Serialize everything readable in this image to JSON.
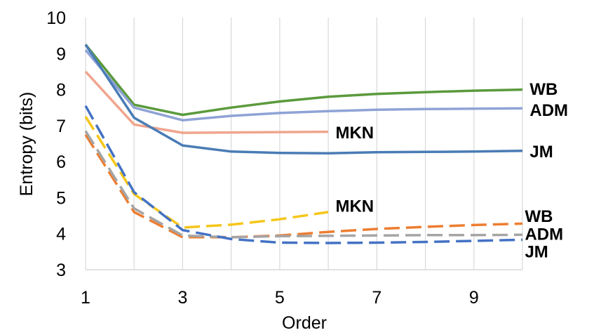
{
  "chart_data": {
    "type": "line",
    "xlabel": "Order",
    "ylabel": "Entropy (bits)",
    "xlim": [
      1,
      10
    ],
    "ylim": [
      3,
      10
    ],
    "x_ticks": [
      1,
      3,
      5,
      7,
      9
    ],
    "y_ticks": [
      3,
      4,
      5,
      6,
      7,
      8,
      9,
      10
    ],
    "grid": "vertical",
    "series": [
      {
        "name": "WB",
        "style": "solid",
        "color": "#5b9a3c",
        "x": [
          1,
          2,
          3,
          4,
          5,
          6,
          7,
          8,
          9,
          10
        ],
        "y": [
          9.25,
          7.58,
          7.3,
          7.5,
          7.67,
          7.8,
          7.88,
          7.93,
          7.97,
          8.0
        ]
      },
      {
        "name": "ADM",
        "style": "solid",
        "color": "#8fa3d6",
        "x": [
          1,
          2,
          3,
          4,
          5,
          6,
          7,
          8,
          9,
          10
        ],
        "y": [
          9.1,
          7.5,
          7.15,
          7.27,
          7.35,
          7.4,
          7.44,
          7.46,
          7.47,
          7.48
        ]
      },
      {
        "name": "MKN",
        "style": "solid",
        "color": "#f0a58e",
        "x": [
          1,
          2,
          3,
          4,
          5,
          6
        ],
        "y": [
          8.5,
          7.03,
          6.8,
          6.81,
          6.82,
          6.83
        ]
      },
      {
        "name": "JM",
        "style": "solid",
        "color": "#4a7cb5",
        "x": [
          1,
          2,
          3,
          4,
          5,
          6,
          7,
          8,
          9,
          10
        ],
        "y": [
          9.25,
          7.22,
          6.45,
          6.28,
          6.24,
          6.23,
          6.26,
          6.27,
          6.28,
          6.3
        ]
      },
      {
        "name": "MKN",
        "style": "dashed",
        "color": "#f5c61a",
        "x": [
          1,
          2,
          3,
          4,
          5,
          6
        ],
        "y": [
          7.25,
          5.1,
          4.17,
          4.25,
          4.4,
          4.6
        ]
      },
      {
        "name": "WB",
        "style": "dashed",
        "color": "#ed7d31",
        "x": [
          1,
          2,
          3,
          4,
          5,
          6,
          7,
          8,
          9,
          10
        ],
        "y": [
          6.75,
          4.6,
          3.9,
          3.9,
          3.95,
          4.05,
          4.13,
          4.19,
          4.24,
          4.28
        ]
      },
      {
        "name": "ADM",
        "style": "dashed",
        "color": "#a5a5a5",
        "x": [
          1,
          2,
          3,
          4,
          5,
          6,
          7,
          8,
          9,
          10
        ],
        "y": [
          6.85,
          4.7,
          3.95,
          3.9,
          3.93,
          3.94,
          3.95,
          3.96,
          3.96,
          3.97
        ]
      },
      {
        "name": "JM",
        "style": "dashed",
        "color": "#4472c4",
        "x": [
          1,
          2,
          3,
          4,
          5,
          6,
          7,
          8,
          9,
          10
        ],
        "y": [
          7.55,
          5.15,
          4.1,
          3.85,
          3.75,
          3.74,
          3.75,
          3.77,
          3.8,
          3.83
        ]
      }
    ],
    "annotations": [
      {
        "text": "WB",
        "x": 10.15,
        "y": 8.03
      },
      {
        "text": "ADM",
        "x": 10.15,
        "y": 7.45
      },
      {
        "text": "MKN",
        "x": 6.15,
        "y": 6.82
      },
      {
        "text": "JM",
        "x": 10.15,
        "y": 6.3
      },
      {
        "text": "MKN",
        "x": 6.15,
        "y": 4.78
      },
      {
        "text": "WB",
        "x": 10.05,
        "y": 4.5
      },
      {
        "text": "ADM",
        "x": 10.05,
        "y": 4.0
      },
      {
        "text": "JM",
        "x": 10.05,
        "y": 3.52
      }
    ]
  }
}
